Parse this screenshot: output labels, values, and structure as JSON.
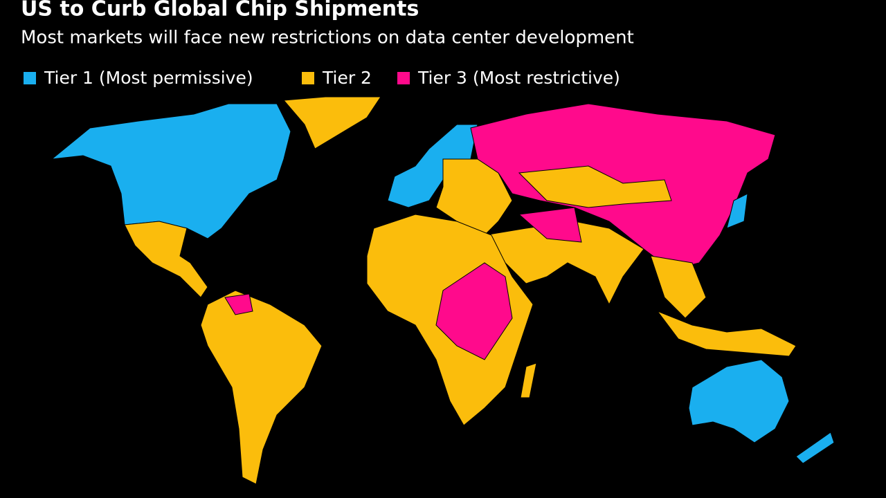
{
  "header": {
    "title": "US to Curb Global Chip Shipments",
    "subtitle": "Most markets will face new restrictions on data center development"
  },
  "legend": [
    {
      "label": "Tier 1 (Most permissive)",
      "color": "#1aafef"
    },
    {
      "label": "Tier 2",
      "color": "#fbbd0c"
    },
    {
      "label": "Tier 3 (Most restrictive)",
      "color": "#ff0a8c"
    }
  ]
}
